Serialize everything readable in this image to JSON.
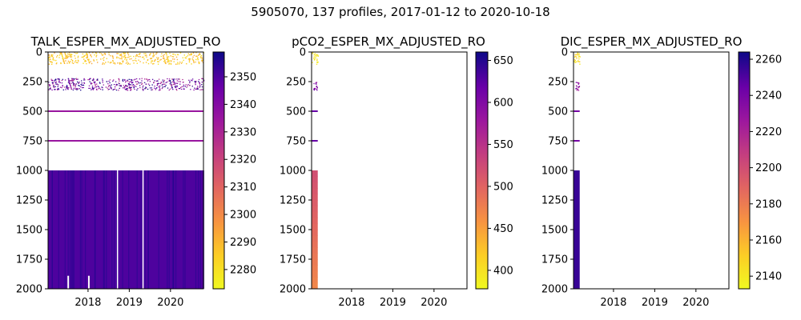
{
  "suptitle": "5905070, 137 profiles, 2017-01-12 to 2020-10-18",
  "chart_data": [
    {
      "type": "heatmap",
      "title": "TALK_ESPER_MX_ADJUSTED_RO",
      "x_tick_labels": [
        "2018",
        "2019",
        "2020"
      ],
      "x_ticks": [
        2018,
        2019,
        2020
      ],
      "xlim": [
        2017.03,
        2020.8
      ],
      "y_tick_labels": [
        "0",
        "250",
        "500",
        "750",
        "1000",
        "1250",
        "1500",
        "1750",
        "2000"
      ],
      "y_ticks": [
        0,
        250,
        500,
        750,
        1000,
        1250,
        1500,
        1750,
        2000
      ],
      "ylim": [
        2000,
        0
      ],
      "colorbar": {
        "cmap": "plasma_r",
        "vmin": 2273,
        "vmax": 2359,
        "tick_labels": [
          "2280",
          "2290",
          "2300",
          "2310",
          "2320",
          "2330",
          "2340",
          "2350"
        ],
        "ticks": [
          2280,
          2290,
          2300,
          2310,
          2320,
          2330,
          2340,
          2350
        ]
      },
      "coverage": {
        "date_range": [
          2017.03,
          2020.8
        ],
        "deep_block_depth": [
          1000,
          2000
        ],
        "deep_value": 2350,
        "shallow_value": 2280,
        "mid_value": 2335,
        "isolated_levels": [
          500,
          750
        ]
      }
    },
    {
      "type": "heatmap",
      "title": "pCO2_ESPER_MX_ADJUSTED_RO",
      "x_tick_labels": [
        "2018",
        "2019",
        "2020"
      ],
      "x_ticks": [
        2018,
        2019,
        2020
      ],
      "xlim": [
        2017.03,
        2020.8
      ],
      "y_tick_labels": [
        "0",
        "250",
        "500",
        "750",
        "1000",
        "1250",
        "1500",
        "1750",
        "2000"
      ],
      "y_ticks": [
        0,
        250,
        500,
        750,
        1000,
        1250,
        1500,
        1750,
        2000
      ],
      "ylim": [
        2000,
        0
      ],
      "colorbar": {
        "cmap": "plasma_r",
        "vmin": 378,
        "vmax": 660,
        "tick_labels": [
          "400",
          "450",
          "500",
          "550",
          "600",
          "650"
        ],
        "ticks": [
          400,
          450,
          500,
          550,
          600,
          650
        ]
      },
      "coverage": {
        "date_range": [
          2017.03,
          2017.18
        ],
        "deep_block_depth": [
          1000,
          2000
        ],
        "deep_value_top": 520,
        "deep_value_bottom": 470,
        "shallow_value": 390,
        "mid_value": 600
      }
    },
    {
      "type": "heatmap",
      "title": "DIC_ESPER_MX_ADJUSTED_RO",
      "x_tick_labels": [
        "2018",
        "2019",
        "2020"
      ],
      "x_ticks": [
        2018,
        2019,
        2020
      ],
      "xlim": [
        2017.03,
        2020.8
      ],
      "y_tick_labels": [
        "0",
        "250",
        "500",
        "750",
        "1000",
        "1250",
        "1500",
        "1750",
        "2000"
      ],
      "y_ticks": [
        0,
        250,
        500,
        750,
        1000,
        1250,
        1500,
        1750,
        2000
      ],
      "ylim": [
        2000,
        0
      ],
      "colorbar": {
        "cmap": "plasma_r",
        "vmin": 2133,
        "vmax": 2264,
        "tick_labels": [
          "2140",
          "2160",
          "2180",
          "2200",
          "2220",
          "2240",
          "2260"
        ],
        "ticks": [
          2140,
          2160,
          2180,
          2200,
          2220,
          2240,
          2260
        ]
      },
      "coverage": {
        "date_range": [
          2017.03,
          2017.18
        ],
        "deep_block_depth": [
          1000,
          2000
        ],
        "deep_value": 2255,
        "shallow_value": 2140,
        "mid_value": 2230
      }
    }
  ]
}
